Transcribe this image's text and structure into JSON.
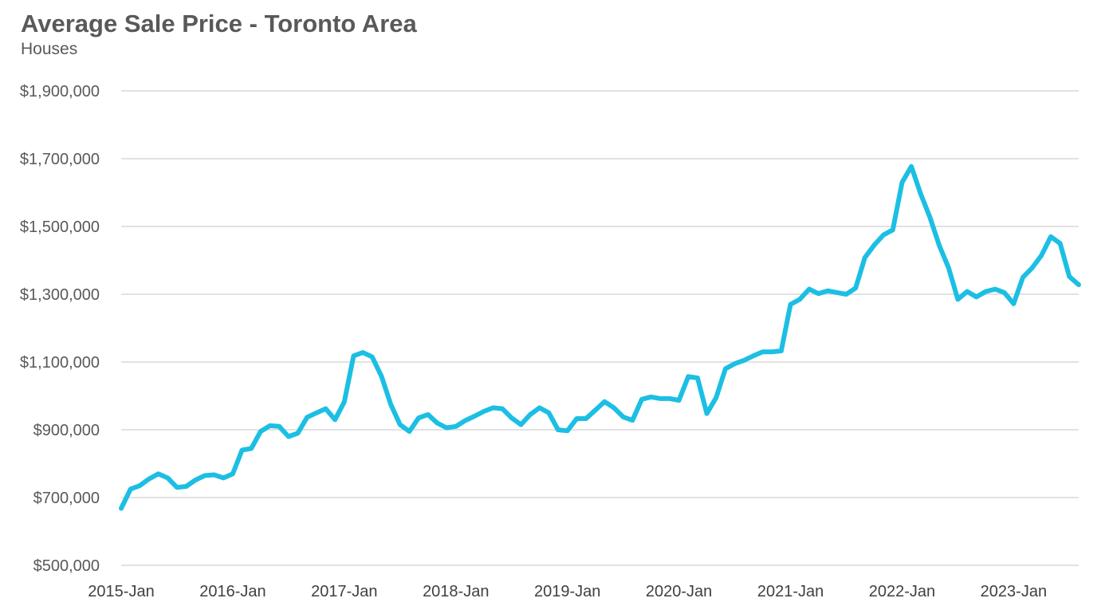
{
  "chart_data": {
    "type": "line",
    "title": "Average Sale Price - Toronto Area",
    "subtitle": "Houses",
    "xlabel": "",
    "ylabel": "",
    "ylim": [
      500000,
      1900000
    ],
    "yticks": [
      500000,
      700000,
      900000,
      1100000,
      1300000,
      1500000,
      1700000,
      1900000
    ],
    "ytick_labels": [
      "$500,000",
      "$700,000",
      "$900,000",
      "$1,100,000",
      "$1,300,000",
      "$1,500,000",
      "$1,700,000",
      "$1,900,000"
    ],
    "xtick_labels": [
      "2015-Jan",
      "2016-Jan",
      "2017-Jan",
      "2018-Jan",
      "2019-Jan",
      "2020-Jan",
      "2021-Jan",
      "2022-Jan",
      "2023-Jan"
    ],
    "grid": true,
    "legend": "none",
    "line_color": "#1CBFE3",
    "series": [
      {
        "start": "2015-Jan",
        "frequency": "monthly",
        "values": [
          668000,
          725000,
          735000,
          755000,
          770000,
          758000,
          730000,
          733000,
          752000,
          765000,
          767000,
          758000,
          770000,
          840000,
          845000,
          895000,
          912000,
          910000,
          880000,
          890000,
          937000,
          950000,
          962000,
          930000,
          982000,
          1118000,
          1128000,
          1115000,
          1058000,
          975000,
          915000,
          895000,
          935000,
          945000,
          920000,
          906000,
          910000,
          927000,
          940000,
          954000,
          965000,
          962000,
          935000,
          915000,
          945000,
          965000,
          950000,
          900000,
          897000,
          933000,
          933000,
          958000,
          983000,
          965000,
          938000,
          928000,
          990000,
          997000,
          992000,
          992000,
          987000,
          1057000,
          1053000,
          948000,
          995000,
          1080000,
          1095000,
          1105000,
          1118000,
          1130000,
          1130000,
          1133000,
          1270000,
          1285000,
          1315000,
          1302000,
          1310000,
          1305000,
          1300000,
          1318000,
          1408000,
          1445000,
          1475000,
          1490000,
          1630000,
          1677000,
          1596000,
          1527000,
          1444000,
          1378000,
          1285000,
          1308000,
          1292000,
          1308000,
          1315000,
          1305000,
          1272000,
          1350000,
          1378000,
          1415000,
          1470000,
          1450000,
          1352000,
          1328000
        ]
      }
    ]
  }
}
